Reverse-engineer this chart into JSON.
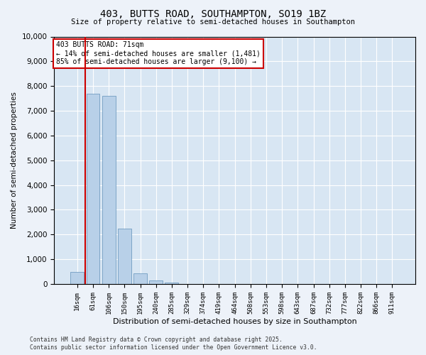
{
  "title_line1": "403, BUTTS ROAD, SOUTHAMPTON, SO19 1BZ",
  "title_line2": "Size of property relative to semi-detached houses in Southampton",
  "xlabel": "Distribution of semi-detached houses by size in Southampton",
  "ylabel": "Number of semi-detached properties",
  "categories": [
    "16sqm",
    "61sqm",
    "106sqm",
    "150sqm",
    "195sqm",
    "240sqm",
    "285sqm",
    "329sqm",
    "374sqm",
    "419sqm",
    "464sqm",
    "508sqm",
    "553sqm",
    "598sqm",
    "643sqm",
    "687sqm",
    "732sqm",
    "777sqm",
    "822sqm",
    "866sqm",
    "911sqm"
  ],
  "values": [
    500,
    7700,
    7600,
    2250,
    420,
    130,
    70,
    0,
    0,
    0,
    0,
    0,
    0,
    0,
    0,
    0,
    0,
    0,
    0,
    0,
    0
  ],
  "bar_color": "#b8d0e8",
  "bar_edge_color": "#6090b8",
  "vline_color": "#cc0000",
  "annotation_text": "403 BUTTS ROAD: 71sqm\n← 14% of semi-detached houses are smaller (1,481)\n85% of semi-detached houses are larger (9,100) →",
  "annotation_box_color": "white",
  "annotation_box_edge_color": "#cc0000",
  "ylim": [
    0,
    10000
  ],
  "yticks": [
    0,
    1000,
    2000,
    3000,
    4000,
    5000,
    6000,
    7000,
    8000,
    9000,
    10000
  ],
  "footer_line1": "Contains HM Land Registry data © Crown copyright and database right 2025.",
  "footer_line2": "Contains public sector information licensed under the Open Government Licence v3.0.",
  "background_color": "#edf2f9",
  "plot_bg_color": "#d8e6f3"
}
